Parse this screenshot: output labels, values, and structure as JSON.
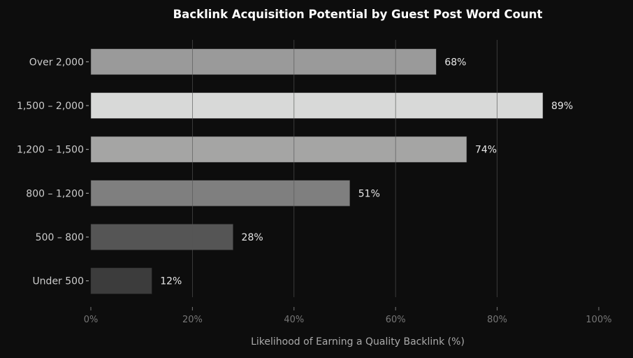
{
  "chart_data": {
    "type": "bar",
    "orientation": "horizontal",
    "title": "Backlink Acquisition Potential by Guest Post Word Count",
    "xlabel": "Likelihood of Earning a Quality Backlink (%)",
    "ylabel": "",
    "xlim": [
      0,
      100
    ],
    "xticks": [
      0,
      20,
      40,
      60,
      80,
      100
    ],
    "xtick_labels": [
      "0%",
      "20%",
      "40%",
      "60%",
      "80%",
      "100%"
    ],
    "grid": "vertical",
    "categories": [
      "Over 2,000",
      "1,500 – 2,000",
      "1,200 – 1,500",
      "800 – 1,200",
      "500 – 800",
      "Under 500"
    ],
    "values": [
      68,
      89,
      74,
      51,
      28,
      12
    ],
    "value_labels": [
      "68%",
      "89%",
      "74%",
      "51%",
      "28%",
      "12%"
    ],
    "bar_colors": [
      "#9a9a9a",
      "#d8d9d8",
      "#a5a5a4",
      "#7f7f7f",
      "#555555",
      "#3c3c3c"
    ],
    "background": "#0d0d0d"
  }
}
